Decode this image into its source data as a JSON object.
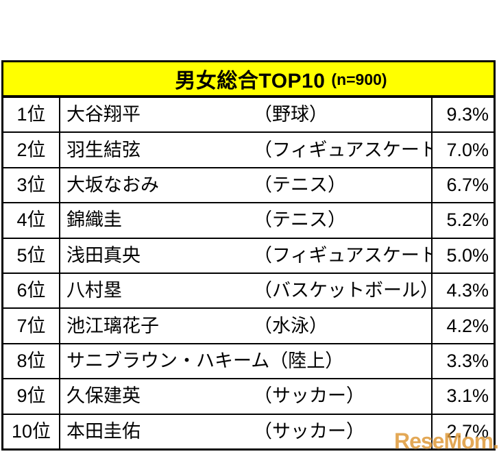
{
  "header": {
    "title": "男女総合TOP10",
    "sample": "(n=900)"
  },
  "watermark": {
    "text": "ReseMom."
  },
  "colors": {
    "header_bg": "#FFFF00",
    "border": "#000000",
    "text": "#000000",
    "watermark": "#DE9632"
  },
  "chart_data": {
    "type": "table",
    "title": "男女総合TOP10 (n=900)",
    "sample_size": 900,
    "unit": "%",
    "rows": [
      {
        "rank_label": "1位",
        "name": "大谷翔平",
        "sport": "（野球）",
        "percent": "9.3%",
        "value": 9.3
      },
      {
        "rank_label": "2位",
        "name": "羽生結弦",
        "sport": "（フィギュアスケート）",
        "percent": "7.0%",
        "value": 7.0
      },
      {
        "rank_label": "3位",
        "name": "大坂なおみ",
        "sport": "（テニス）",
        "percent": "6.7%",
        "value": 6.7
      },
      {
        "rank_label": "4位",
        "name": "錦織圭",
        "sport": "（テニス）",
        "percent": "5.2%",
        "value": 5.2
      },
      {
        "rank_label": "5位",
        "name": "浅田真央",
        "sport": "（フィギュアスケート）",
        "percent": "5.0%",
        "value": 5.0
      },
      {
        "rank_label": "6位",
        "name": "八村塁",
        "sport": "（バスケットボール）",
        "percent": "4.3%",
        "value": 4.3
      },
      {
        "rank_label": "7位",
        "name": "池江璃花子",
        "sport": "（水泳）",
        "percent": "4.2%",
        "value": 4.2
      },
      {
        "rank_label": "8位",
        "name": "サニブラウン・ハキーム",
        "sport": "（陸上）",
        "percent": "3.3%",
        "value": 3.3
      },
      {
        "rank_label": "9位",
        "name": "久保建英",
        "sport": "（サッカー）",
        "percent": "3.1%",
        "value": 3.1
      },
      {
        "rank_label": "10位",
        "name": "本田圭佑",
        "sport": "（サッカー）",
        "percent": "2.7%",
        "value": 2.7
      }
    ]
  }
}
